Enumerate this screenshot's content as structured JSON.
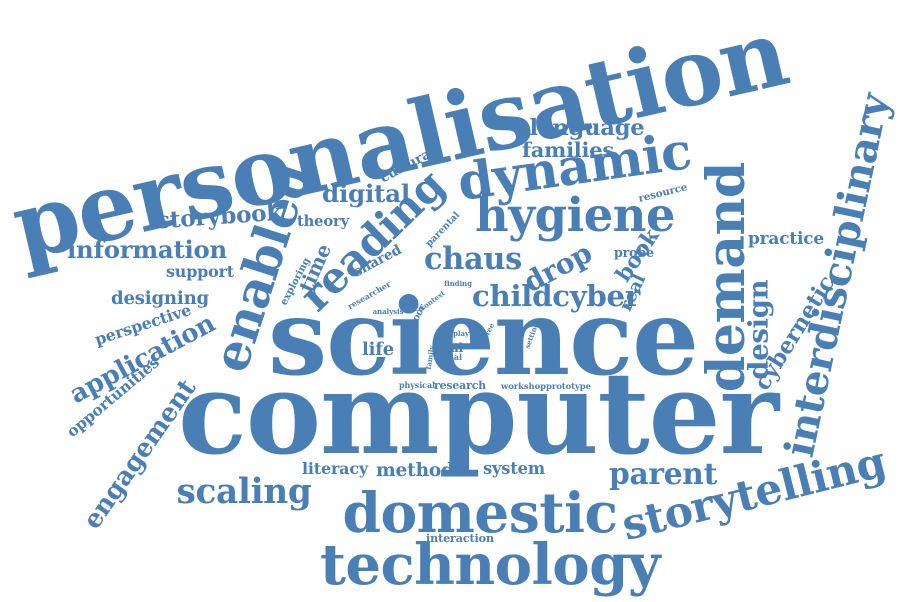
{
  "cloud": {
    "color": "#4a7fb5",
    "words": [
      {
        "id": "personalisation",
        "text": "personalisation"
      },
      {
        "id": "computer",
        "text": "computer"
      },
      {
        "id": "science",
        "text": "science"
      },
      {
        "id": "technology",
        "text": "technology"
      },
      {
        "id": "domestic",
        "text": "domestic"
      },
      {
        "id": "storytelling",
        "text": "storytelling"
      },
      {
        "id": "dynamic",
        "text": "dynamic"
      },
      {
        "id": "hygiene",
        "text": "hygiene"
      },
      {
        "id": "interdisciplinary",
        "text": "interdisciplinary"
      },
      {
        "id": "demand",
        "text": "demand"
      },
      {
        "id": "enabled",
        "text": "enabled"
      },
      {
        "id": "reading",
        "text": "reading"
      },
      {
        "id": "scaling",
        "text": "scaling"
      },
      {
        "id": "chaus",
        "text": "chaus"
      },
      {
        "id": "childcyber",
        "text": "childcyber"
      },
      {
        "id": "engagement",
        "text": "engagement"
      },
      {
        "id": "design",
        "text": "design"
      },
      {
        "id": "parent",
        "text": "parent"
      },
      {
        "id": "application",
        "text": "application"
      },
      {
        "id": "information",
        "text": "information"
      },
      {
        "id": "drop",
        "text": "drop"
      },
      {
        "id": "designing",
        "text": "designing"
      },
      {
        "id": "storybook",
        "text": "storybook"
      },
      {
        "id": "language",
        "text": "language"
      },
      {
        "id": "families",
        "text": "families"
      },
      {
        "id": "digital",
        "text": "digital"
      },
      {
        "id": "book",
        "text": "book"
      },
      {
        "id": "cybernetic",
        "text": "cybernetic"
      },
      {
        "id": "real",
        "text": "real"
      },
      {
        "id": "method",
        "text": "method"
      },
      {
        "id": "practice",
        "text": "practice"
      },
      {
        "id": "cultural",
        "text": "cultural"
      },
      {
        "id": "time",
        "text": "time"
      },
      {
        "id": "opportunities",
        "text": "opportunities"
      },
      {
        "id": "theory",
        "text": "theory"
      },
      {
        "id": "literacy",
        "text": "literacy"
      },
      {
        "id": "system",
        "text": "system"
      },
      {
        "id": "life",
        "text": "life"
      },
      {
        "id": "support",
        "text": "support"
      },
      {
        "id": "perspective",
        "text": "perspective"
      },
      {
        "id": "shared",
        "text": "shared"
      },
      {
        "id": "resource",
        "text": "resource"
      },
      {
        "id": "probe",
        "text": "probe"
      },
      {
        "id": "interaction",
        "text": "interaction"
      },
      {
        "id": "outdoor",
        "text": "outdoor"
      },
      {
        "id": "exploring",
        "text": "exploring"
      },
      {
        "id": "research",
        "text": "research"
      },
      {
        "id": "oral",
        "text": "oral"
      },
      {
        "id": "workshopprototype",
        "text": "workshopprototype"
      },
      {
        "id": "parental",
        "text": "parental"
      },
      {
        "id": "researcher",
        "text": "researcher"
      },
      {
        "id": "physical",
        "text": "physical"
      },
      {
        "id": "social",
        "text": "social"
      },
      {
        "id": "finding",
        "text": "finding"
      },
      {
        "id": "analysis",
        "text": "analysis"
      },
      {
        "id": "space",
        "text": "space"
      },
      {
        "id": "context",
        "text": "context"
      },
      {
        "id": "play",
        "text": "play"
      },
      {
        "id": "setting",
        "text": "setting"
      },
      {
        "id": "family",
        "text": "family"
      },
      {
        "id": "free",
        "text": "free"
      }
    ]
  }
}
